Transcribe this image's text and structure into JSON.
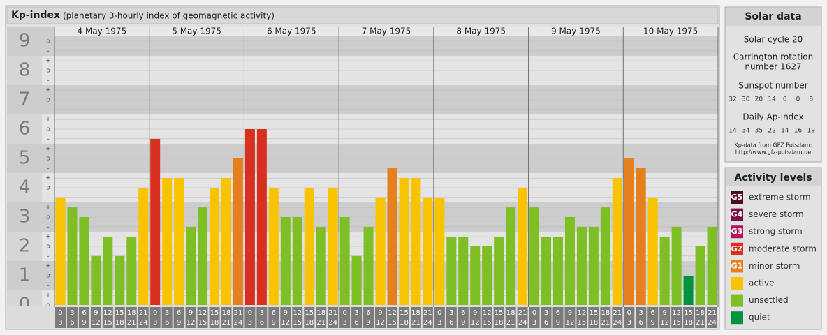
{
  "chart_data": {
    "type": "bar",
    "title": "Kp-index",
    "subtitle": "(planetary 3-hourly index of geomagnetic activity)",
    "days": [
      "4 May 1975",
      "5 May 1975",
      "6 May 1975",
      "7 May 1975",
      "8 May 1975",
      "9 May 1975",
      "10 May 1975"
    ],
    "intervals": [
      [
        0,
        3
      ],
      [
        3,
        6
      ],
      [
        6,
        9
      ],
      [
        9,
        12
      ],
      [
        12,
        15
      ],
      [
        15,
        18
      ],
      [
        18,
        21
      ],
      [
        21,
        24
      ]
    ],
    "values": [
      3.67,
      3.33,
      3,
      1.67,
      2.33,
      1.67,
      2.33,
      4,
      5.67,
      4.33,
      4.33,
      2.67,
      3.33,
      4,
      4.33,
      5,
      6,
      6,
      4,
      3,
      3,
      4,
      2.67,
      4,
      3,
      1.67,
      2.67,
      3.67,
      4.67,
      4.33,
      4.33,
      3.67,
      3.67,
      2.33,
      2.33,
      2,
      2,
      2.33,
      3.33,
      4,
      3.33,
      2.33,
      2.33,
      3,
      2.67,
      2.67,
      3.33,
      4.33,
      5,
      4.67,
      3.67,
      2.33,
      2.67,
      1,
      2,
      2.67
    ],
    "colors": [
      "#f8c300",
      "#7dbf25",
      "#7dbf25",
      "#7dbf25",
      "#7dbf25",
      "#7dbf25",
      "#7dbf25",
      "#f8c300",
      "#d7301f",
      "#f8c300",
      "#f8c300",
      "#7dbf25",
      "#7dbf25",
      "#f8c300",
      "#f8c300",
      "#e5801d",
      "#d7301f",
      "#d7301f",
      "#f8c300",
      "#7dbf25",
      "#7dbf25",
      "#f8c300",
      "#7dbf25",
      "#f8c300",
      "#7dbf25",
      "#7dbf25",
      "#7dbf25",
      "#f8c300",
      "#e5801d",
      "#f8c300",
      "#f8c300",
      "#f8c300",
      "#f8c300",
      "#7dbf25",
      "#7dbf25",
      "#7dbf25",
      "#7dbf25",
      "#7dbf25",
      "#7dbf25",
      "#f8c300",
      "#7dbf25",
      "#7dbf25",
      "#7dbf25",
      "#7dbf25",
      "#7dbf25",
      "#7dbf25",
      "#7dbf25",
      "#f8c300",
      "#e5801d",
      "#e5801d",
      "#f8c300",
      "#7dbf25",
      "#7dbf25",
      "#00923f",
      "#7dbf25",
      "#7dbf25"
    ],
    "ylim": [
      0,
      9.5
    ],
    "yticks": [
      0,
      1,
      2,
      3,
      4,
      5,
      6,
      7,
      8,
      9
    ],
    "yminor_ticks": [
      {
        "value": 0,
        "label": "o"
      },
      {
        "value": 0.33,
        "label": "+"
      },
      {
        "value": 0.67,
        "label": "-"
      },
      {
        "value": 1,
        "label": "o"
      },
      {
        "value": 1.33,
        "label": "+"
      },
      {
        "value": 1.67,
        "label": "-"
      },
      {
        "value": 2,
        "label": "o"
      },
      {
        "value": 2.33,
        "label": "+"
      },
      {
        "value": 2.67,
        "label": "-"
      },
      {
        "value": 3,
        "label": "o"
      },
      {
        "value": 3.33,
        "label": "+"
      },
      {
        "value": 3.67,
        "label": "-"
      },
      {
        "value": 4,
        "label": "o"
      },
      {
        "value": 4.33,
        "label": "+"
      },
      {
        "value": 4.67,
        "label": "-"
      },
      {
        "value": 5,
        "label": "o"
      },
      {
        "value": 5.33,
        "label": "+"
      },
      {
        "value": 5.67,
        "label": "-"
      },
      {
        "value": 6,
        "label": "o"
      },
      {
        "value": 6.33,
        "label": "+"
      },
      {
        "value": 6.67,
        "label": "-"
      },
      {
        "value": 7,
        "label": "o"
      },
      {
        "value": 7.33,
        "label": "+"
      },
      {
        "value": 7.67,
        "label": "-"
      },
      {
        "value": 8,
        "label": "o"
      },
      {
        "value": 8.33,
        "label": "+"
      },
      {
        "value": 8.67,
        "label": "-"
      },
      {
        "value": 9,
        "label": "o"
      }
    ],
    "grid": true
  },
  "solar_data": {
    "title": "Solar data",
    "cycle": "Solar cycle 20",
    "carrington_lines": [
      "Carrington rotation",
      "number 1627"
    ],
    "sunspot_title": "Sunspot number",
    "sunspots": [
      32,
      30,
      20,
      14,
      0,
      0,
      8
    ],
    "ap_title": "Daily Ap-index",
    "ap": [
      14,
      34,
      35,
      22,
      14,
      16,
      19
    ],
    "credit_lines": [
      "Kp-data from GFZ Potsdam:",
      "http://www.gfz-potsdam.de"
    ]
  },
  "activity_levels": {
    "title": "Activity levels",
    "items": [
      {
        "badge": "G5",
        "label": "extreme storm",
        "color": "#4f0b22"
      },
      {
        "badge": "G4",
        "label": "severe storm",
        "color": "#7a1040"
      },
      {
        "badge": "G3",
        "label": "strong storm",
        "color": "#b3155e"
      },
      {
        "badge": "G2",
        "label": "moderate storm",
        "color": "#d7301f"
      },
      {
        "badge": "G1",
        "label": "minor storm",
        "color": "#e5801d"
      },
      {
        "label": "active",
        "color": "#f8c300"
      },
      {
        "label": "unsettled",
        "color": "#7dbf25"
      },
      {
        "label": "quiet",
        "color": "#00923f"
      }
    ]
  }
}
